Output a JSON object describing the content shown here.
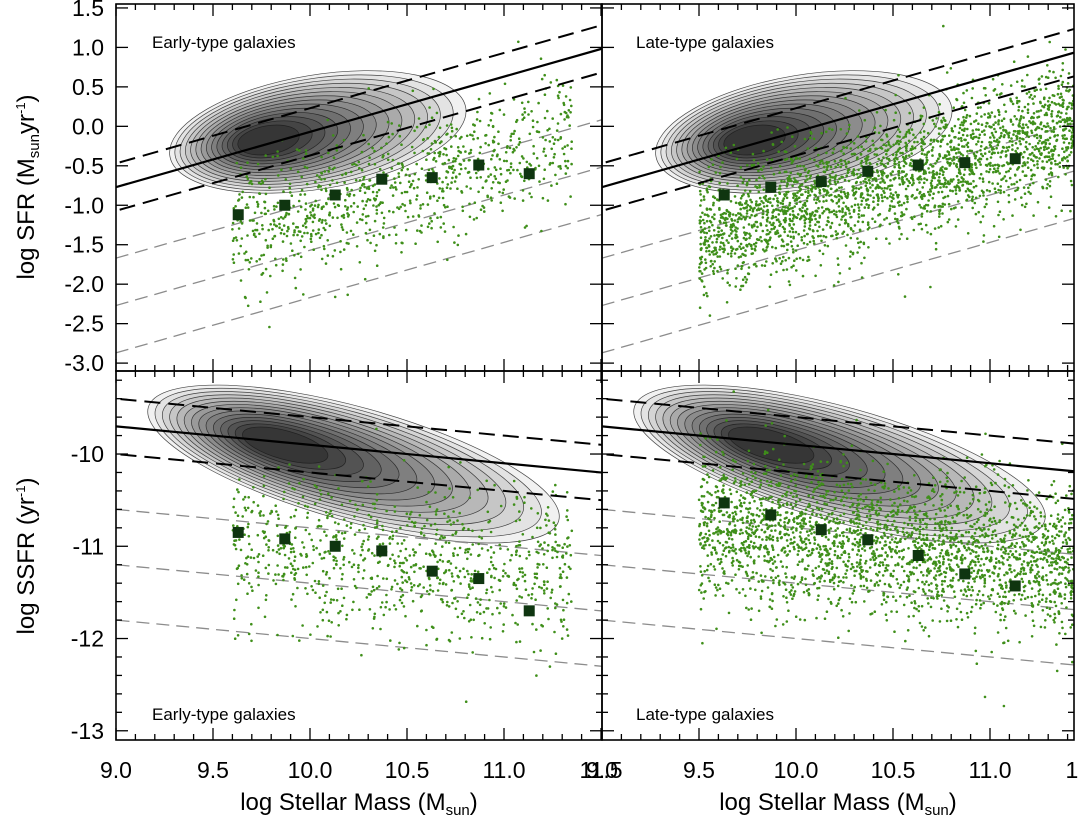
{
  "chart_data": [
    {
      "panel": "top-left",
      "type": "scatter",
      "label": "Early-type galaxies",
      "xlabel": "log Stellar Mass (M_sun)",
      "ylabel": "log SFR (M_sun yr^-1)",
      "xlim": [
        9.0,
        11.95
      ],
      "ylim": [
        -3.1,
        1.55
      ],
      "median_points": {
        "x": [
          9.63,
          9.87,
          10.13,
          10.37,
          10.63,
          10.87,
          11.13
        ],
        "y": [
          -1.12,
          -1.0,
          -0.87,
          -0.67,
          -0.65,
          -0.49,
          -0.6
        ]
      },
      "main_sequence_line": {
        "slope": 0.7,
        "intercept": -7.07,
        "style": "solid"
      },
      "envelope_lines": [
        {
          "slope": 0.7,
          "intercept": -6.77,
          "style": "dashed"
        },
        {
          "slope": 0.7,
          "intercept": -7.37,
          "style": "dashed"
        }
      ],
      "quenched_lines": [
        {
          "slope": 0.7,
          "intercept": -7.97,
          "style": "dashed-gray"
        },
        {
          "slope": 0.7,
          "intercept": -8.57,
          "style": "dashed-gray"
        },
        {
          "slope": 0.7,
          "intercept": -9.17,
          "style": "dashed-gray"
        }
      ],
      "scatter_cloud": {
        "center": [
          10.4,
          -0.8
        ],
        "spread": [
          0.4,
          0.4
        ],
        "count": 900,
        "x_range": [
          9.6,
          11.35
        ]
      },
      "contour_density": {
        "center": [
          9.72,
          -0.2
        ],
        "direction": [
          0.62,
          0.25
        ]
      }
    },
    {
      "panel": "top-right",
      "type": "scatter",
      "label": "Late-type galaxies",
      "xlabel": "log Stellar Mass (M_sun)",
      "xlim": [
        9.0,
        11.95
      ],
      "ylim": [
        -3.1,
        1.55
      ],
      "median_points": {
        "x": [
          9.63,
          9.87,
          10.13,
          10.37,
          10.63,
          10.87,
          11.13
        ],
        "y": [
          -0.87,
          -0.77,
          -0.7,
          -0.57,
          -0.49,
          -0.46,
          -0.41
        ]
      },
      "main_sequence_line": {
        "slope": 0.7,
        "intercept": -7.07,
        "style": "solid"
      },
      "envelope_lines": [
        {
          "slope": 0.7,
          "intercept": -6.77,
          "style": "dashed"
        },
        {
          "slope": 0.7,
          "intercept": -7.37,
          "style": "dashed"
        }
      ],
      "quenched_lines": [
        {
          "slope": 0.7,
          "intercept": -7.97,
          "style": "dashed-gray"
        },
        {
          "slope": 0.7,
          "intercept": -8.57,
          "style": "dashed-gray"
        },
        {
          "slope": 0.7,
          "intercept": -9.17,
          "style": "dashed-gray"
        }
      ],
      "scatter_cloud": {
        "center": [
          10.55,
          -0.65
        ],
        "spread": [
          0.42,
          0.4
        ],
        "count": 2600,
        "x_range": [
          9.5,
          11.55
        ]
      },
      "contour_density": {
        "center": [
          9.72,
          -0.2
        ],
        "direction": [
          0.62,
          0.25
        ]
      }
    },
    {
      "panel": "bottom-left",
      "type": "scatter",
      "label": "Early-type galaxies",
      "xlabel": "log Stellar Mass (M_sun)",
      "ylabel": "log SSFR (yr^-1)",
      "xlim": [
        9.0,
        11.95
      ],
      "ylim": [
        -13.1,
        -9.1
      ],
      "median_points": {
        "x": [
          9.63,
          9.87,
          10.13,
          10.37,
          10.63,
          10.87,
          11.13
        ],
        "y": [
          -10.85,
          -10.92,
          -11.0,
          -11.05,
          -11.27,
          -11.35,
          -11.7
        ]
      },
      "main_sequence_line": {
        "slope": -0.2,
        "intercept": -7.9,
        "style": "solid"
      },
      "envelope_lines": [
        {
          "slope": -0.2,
          "intercept": -7.6,
          "style": "dashed"
        },
        {
          "slope": -0.2,
          "intercept": -8.2,
          "style": "dashed"
        }
      ],
      "quenched_lines": [
        {
          "slope": -0.2,
          "intercept": -8.8,
          "style": "dashed-gray"
        },
        {
          "slope": -0.2,
          "intercept": -9.4,
          "style": "dashed-gray"
        },
        {
          "slope": -0.2,
          "intercept": -10.0,
          "style": "dashed-gray"
        }
      ],
      "scatter_cloud": {
        "center": [
          10.4,
          -11.15
        ],
        "spread": [
          0.42,
          0.42
        ],
        "count": 900,
        "x_range": [
          9.6,
          11.35
        ]
      },
      "contour_density": {
        "center": [
          9.78,
          -9.85
        ],
        "direction": [
          0.86,
          -0.5
        ]
      }
    },
    {
      "panel": "bottom-right",
      "type": "scatter",
      "label": "Late-type galaxies",
      "xlabel": "log Stellar Mass (M_sun)",
      "xlim": [
        9.0,
        11.95
      ],
      "ylim": [
        -13.1,
        -9.1
      ],
      "median_points": {
        "x": [
          9.63,
          9.87,
          10.13,
          10.37,
          10.63,
          10.87,
          11.13
        ],
        "y": [
          -10.53,
          -10.66,
          -10.82,
          -10.93,
          -11.1,
          -11.3,
          -11.43
        ]
      },
      "main_sequence_line": {
        "slope": -0.2,
        "intercept": -7.9,
        "style": "solid"
      },
      "envelope_lines": [
        {
          "slope": -0.2,
          "intercept": -7.6,
          "style": "dashed"
        },
        {
          "slope": -0.2,
          "intercept": -8.2,
          "style": "dashed"
        }
      ],
      "quenched_lines": [
        {
          "slope": -0.2,
          "intercept": -8.8,
          "style": "dashed-gray"
        },
        {
          "slope": -0.2,
          "intercept": -9.4,
          "style": "dashed-gray"
        },
        {
          "slope": -0.2,
          "intercept": -10.0,
          "style": "dashed-gray"
        }
      ],
      "scatter_cloud": {
        "center": [
          10.55,
          -11.0
        ],
        "spread": [
          0.42,
          0.42
        ],
        "count": 2600,
        "x_range": [
          9.5,
          11.55
        ]
      },
      "contour_density": {
        "center": [
          9.78,
          -9.85
        ],
        "direction": [
          0.86,
          -0.5
        ]
      }
    }
  ],
  "axes": {
    "x_ticks": [
      "9.0",
      "9.5",
      "10.0",
      "10.5",
      "11.0",
      "11.5"
    ],
    "x_tick_values": [
      9.0,
      9.5,
      10.0,
      10.5,
      11.0,
      11.5
    ],
    "y_ticks_top": [
      "1.5",
      "1.0",
      "0.5",
      "0.0",
      "-0.5",
      "-1.0",
      "-1.5",
      "-2.0",
      "-2.5",
      "-3.0"
    ],
    "y_tick_values_top": [
      1.5,
      1.0,
      0.5,
      0.0,
      -0.5,
      -1.0,
      -1.5,
      -2.0,
      -2.5,
      -3.0
    ],
    "y_ticks_bottom": [
      "-10",
      "-11",
      "-12",
      "-13"
    ],
    "y_tick_values_bottom": [
      -10,
      -11,
      -12,
      -13
    ],
    "x_title_main": "log Stellar Mass (M",
    "x_title_sub": "sun",
    "x_title_end": ")",
    "y_title_top_main": "log SFR (M",
    "y_title_top_sub": "sun",
    "y_title_top_mid": "yr",
    "y_title_top_sup": "-1",
    "y_title_top_end": ")",
    "y_title_bottom_main": "log SSFR (yr",
    "y_title_bottom_sup": "-1",
    "y_title_bottom_end": ")"
  },
  "colors": {
    "scatter": "#3f8f1a",
    "median_marker": "#0f3510",
    "contour_line": "#1a1a1a",
    "main_line": "#000000",
    "envelope_line": "#000000",
    "quenched_line": "#8c8c8c",
    "background": "#ffffff"
  }
}
